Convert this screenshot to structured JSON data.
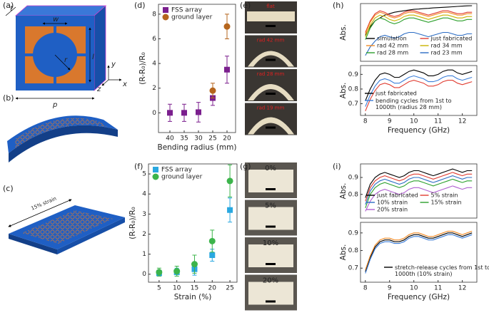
{
  "figure": {
    "panel_labels": [
      "(a)",
      "(b)",
      "(c)",
      "(d)",
      "(e)",
      "(f)",
      "(g)",
      "(h)",
      "(i)"
    ],
    "a_labels": {
      "t": "t",
      "w": "w",
      "r": "r",
      "l": "l",
      "p": "p",
      "y": "y",
      "z": "z",
      "x": "x"
    },
    "c_label": "15% strain",
    "e_labels": [
      "flat",
      "rad 42 mm",
      "rad 28 mm",
      "rad 19 mm"
    ],
    "g_labels": [
      "0%",
      "5%",
      "10%",
      "20%"
    ]
  },
  "chart_data": [
    {
      "type": "scatter",
      "xlabel": "Bending radius (mm)",
      "ylabel": "(R-R₀)/R₀",
      "xlim": [
        44,
        17
      ],
      "xticks": [
        40,
        35,
        30,
        25,
        20
      ],
      "ylim": [
        -1.6,
        8.8
      ],
      "yticks": [
        0,
        2,
        4,
        6,
        8
      ],
      "legend": "upper left",
      "series": [
        {
          "name": "FSS array",
          "color": "#7b1f8e",
          "marker": "square",
          "x": [
            40,
            35,
            30,
            25,
            20
          ],
          "values": [
            0,
            0,
            0.05,
            1.2,
            3.5
          ],
          "errors": [
            0.7,
            0.7,
            0.8,
            0.6,
            1.1
          ]
        },
        {
          "name": "ground layer",
          "color": "#b5651d",
          "marker": "circle",
          "x": [
            25,
            20
          ],
          "values": [
            1.8,
            7.0
          ],
          "errors": [
            0.6,
            1.0
          ]
        }
      ]
    },
    {
      "type": "scatter",
      "xlabel": "Strain (%)",
      "ylabel": "(R-R₀)/R₀",
      "xlim": [
        2,
        27
      ],
      "xticks": [
        5,
        10,
        15,
        20,
        25
      ],
      "ylim": [
        -0.4,
        5.5
      ],
      "yticks": [
        0,
        1,
        2,
        3,
        4,
        5
      ],
      "legend": "upper left",
      "series": [
        {
          "name": "FSS array",
          "color": "#29a8e0",
          "marker": "square",
          "x": [
            5,
            10,
            15,
            20,
            25
          ],
          "values": [
            0.05,
            0.1,
            0.25,
            0.95,
            3.2
          ],
          "errors": [
            0.15,
            0.2,
            0.3,
            0.3,
            0.6
          ]
        },
        {
          "name": "ground layer",
          "color": "#3cb44b",
          "marker": "circle",
          "x": [
            5,
            10,
            15,
            20,
            25
          ],
          "values": [
            0.1,
            0.15,
            0.5,
            1.65,
            4.65
          ],
          "errors": [
            0.2,
            0.25,
            0.45,
            0.55,
            0.8
          ]
        }
      ]
    },
    {
      "type": "line",
      "ylabel": "Abs.",
      "xlim": [
        7.8,
        12.6
      ],
      "ylim": [
        0.6,
        1.0
      ],
      "legend": "lower right",
      "legend_columns": 2,
      "x": [
        8,
        8.2,
        8.4,
        8.6,
        8.8,
        9,
        9.2,
        9.4,
        9.6,
        9.8,
        10,
        10.2,
        10.4,
        10.6,
        10.8,
        11,
        11.2,
        11.4,
        11.6,
        11.8,
        12,
        12.2,
        12.4
      ],
      "series": [
        {
          "name": "simulation",
          "color": "#000000",
          "values": [
            0.78,
            0.84,
            0.88,
            0.9,
            0.92,
            0.93,
            0.94,
            0.945,
            0.95,
            0.955,
            0.96,
            0.962,
            0.965,
            0.967,
            0.97,
            0.972,
            0.974,
            0.976,
            0.978,
            0.98,
            0.982,
            0.984,
            0.985
          ]
        },
        {
          "name": "just fabricated",
          "color": "#e03c31",
          "values": [
            0.8,
            0.88,
            0.93,
            0.95,
            0.94,
            0.92,
            0.91,
            0.92,
            0.94,
            0.95,
            0.95,
            0.94,
            0.93,
            0.92,
            0.93,
            0.94,
            0.95,
            0.95,
            0.94,
            0.93,
            0.93,
            0.94,
            0.94
          ]
        },
        {
          "name": "rad 42 mm",
          "color": "#f28c28",
          "values": [
            0.79,
            0.87,
            0.92,
            0.94,
            0.93,
            0.91,
            0.9,
            0.91,
            0.93,
            0.94,
            0.94,
            0.93,
            0.92,
            0.91,
            0.92,
            0.93,
            0.94,
            0.94,
            0.93,
            0.92,
            0.92,
            0.93,
            0.93
          ]
        },
        {
          "name": "rad 34 mm",
          "color": "#c9b400",
          "values": [
            0.77,
            0.85,
            0.9,
            0.92,
            0.91,
            0.89,
            0.88,
            0.89,
            0.91,
            0.92,
            0.92,
            0.91,
            0.9,
            0.89,
            0.9,
            0.91,
            0.92,
            0.92,
            0.91,
            0.9,
            0.9,
            0.91,
            0.91
          ]
        },
        {
          "name": "rad 28 mm",
          "color": "#2ca02c",
          "values": [
            0.75,
            0.83,
            0.88,
            0.9,
            0.89,
            0.87,
            0.86,
            0.87,
            0.89,
            0.9,
            0.9,
            0.89,
            0.88,
            0.87,
            0.88,
            0.89,
            0.9,
            0.9,
            0.89,
            0.88,
            0.88,
            0.89,
            0.89
          ]
        },
        {
          "name": "rad 23 mm",
          "color": "#2b6cc4",
          "values": [
            0.64,
            0.7,
            0.74,
            0.77,
            0.78,
            0.77,
            0.76,
            0.77,
            0.79,
            0.8,
            0.8,
            0.79,
            0.78,
            0.77,
            0.78,
            0.79,
            0.8,
            0.8,
            0.79,
            0.78,
            0.78,
            0.79,
            0.79
          ]
        }
      ]
    },
    {
      "type": "line",
      "xlabel": "Frequency (GHz)",
      "ylabel": "Abs.",
      "xlim": [
        7.8,
        12.6
      ],
      "xticks": [
        8,
        9,
        10,
        11,
        12
      ],
      "ylim": [
        0.62,
        0.96
      ],
      "yticks": [
        0.7,
        0.8,
        0.9
      ],
      "legend": "lower left",
      "legend_columns": 1,
      "x": [
        8,
        8.2,
        8.4,
        8.6,
        8.8,
        9,
        9.2,
        9.4,
        9.6,
        9.8,
        10,
        10.2,
        10.4,
        10.6,
        10.8,
        11,
        11.2,
        11.4,
        11.6,
        11.8,
        12,
        12.2,
        12.4
      ],
      "series": [
        {
          "name": "just fabricated",
          "color": "#000000",
          "values": [
            0.72,
            0.8,
            0.86,
            0.9,
            0.91,
            0.9,
            0.88,
            0.88,
            0.9,
            0.92,
            0.93,
            0.92,
            0.91,
            0.89,
            0.89,
            0.9,
            0.92,
            0.93,
            0.93,
            0.91,
            0.9,
            0.91,
            0.92
          ]
        },
        {
          "name": "bending cycles from 1st to\n1000th (radius 28 mm)",
          "color": "#3b7dd8",
          "values": [
            0.68,
            0.76,
            0.82,
            0.86,
            0.87,
            0.86,
            0.84,
            0.84,
            0.86,
            0.88,
            0.89,
            0.88,
            0.87,
            0.85,
            0.85,
            0.86,
            0.88,
            0.89,
            0.89,
            0.87,
            0.86,
            0.87,
            0.88
          ]
        },
        {
          "color": "#e03c31",
          "values": [
            0.65,
            0.73,
            0.79,
            0.83,
            0.84,
            0.83,
            0.81,
            0.81,
            0.83,
            0.85,
            0.86,
            0.85,
            0.84,
            0.82,
            0.82,
            0.83,
            0.85,
            0.86,
            0.86,
            0.84,
            0.83,
            0.84,
            0.85
          ]
        }
      ]
    },
    {
      "type": "line",
      "ylabel": "Abs.",
      "xlim": [
        7.8,
        12.6
      ],
      "ylim": [
        0.66,
        0.98
      ],
      "yticks": [
        0.8,
        0.9
      ],
      "legend": "lower right",
      "legend_columns": 2,
      "x": [
        8,
        8.2,
        8.4,
        8.6,
        8.8,
        9,
        9.2,
        9.4,
        9.6,
        9.8,
        10,
        10.2,
        10.4,
        10.6,
        10.8,
        11,
        11.2,
        11.4,
        11.6,
        11.8,
        12,
        12.2,
        12.4
      ],
      "series": [
        {
          "name": "just fabricated",
          "color": "#000000",
          "values": [
            0.78,
            0.86,
            0.9,
            0.92,
            0.93,
            0.92,
            0.91,
            0.9,
            0.91,
            0.93,
            0.94,
            0.94,
            0.93,
            0.92,
            0.91,
            0.92,
            0.93,
            0.94,
            0.95,
            0.94,
            0.93,
            0.94,
            0.94
          ]
        },
        {
          "name": "5% strain",
          "color": "#e03c31",
          "values": [
            0.76,
            0.84,
            0.88,
            0.9,
            0.91,
            0.9,
            0.89,
            0.88,
            0.89,
            0.91,
            0.92,
            0.92,
            0.91,
            0.9,
            0.89,
            0.9,
            0.91,
            0.92,
            0.93,
            0.92,
            0.91,
            0.92,
            0.92
          ]
        },
        {
          "name": "10% strain",
          "color": "#2b6cc4",
          "values": [
            0.74,
            0.82,
            0.86,
            0.88,
            0.89,
            0.88,
            0.87,
            0.86,
            0.87,
            0.89,
            0.9,
            0.9,
            0.89,
            0.88,
            0.87,
            0.88,
            0.89,
            0.9,
            0.91,
            0.9,
            0.89,
            0.9,
            0.9
          ]
        },
        {
          "name": "15% strain",
          "color": "#2ca02c",
          "values": [
            0.72,
            0.8,
            0.84,
            0.86,
            0.87,
            0.86,
            0.85,
            0.84,
            0.85,
            0.87,
            0.88,
            0.88,
            0.87,
            0.86,
            0.85,
            0.86,
            0.87,
            0.88,
            0.89,
            0.88,
            0.87,
            0.88,
            0.88
          ]
        },
        {
          "name": "20% strain",
          "color": "#b05fd0",
          "values": [
            0.7,
            0.76,
            0.8,
            0.82,
            0.83,
            0.82,
            0.81,
            0.8,
            0.81,
            0.83,
            0.84,
            0.84,
            0.83,
            0.82,
            0.81,
            0.82,
            0.83,
            0.84,
            0.85,
            0.84,
            0.83,
            0.84,
            0.84
          ]
        }
      ]
    },
    {
      "type": "line",
      "xlabel": "Frequency (GHz)",
      "ylabel": "Abs.",
      "xlim": [
        7.8,
        12.6
      ],
      "xticks": [
        8,
        9,
        10,
        11,
        12
      ],
      "ylim": [
        0.62,
        0.96
      ],
      "yticks": [
        0.7,
        0.8,
        0.9
      ],
      "legend": "lower right",
      "legend_columns": 1,
      "x": [
        8,
        8.2,
        8.4,
        8.6,
        8.8,
        9,
        9.2,
        9.4,
        9.6,
        9.8,
        10,
        10.2,
        10.4,
        10.6,
        10.8,
        11,
        11.2,
        11.4,
        11.6,
        11.8,
        12,
        12.2,
        12.4
      ],
      "series": [
        {
          "name": "stretch-release cycles from 1st to\n1000th (10% strain)",
          "color": "#000000",
          "values": [
            0.68,
            0.76,
            0.82,
            0.85,
            0.86,
            0.86,
            0.85,
            0.85,
            0.86,
            0.88,
            0.89,
            0.89,
            0.88,
            0.87,
            0.87,
            0.88,
            0.89,
            0.9,
            0.9,
            0.89,
            0.88,
            0.89,
            0.9
          ]
        },
        {
          "color": "#f28c28",
          "values": [
            0.69,
            0.77,
            0.83,
            0.86,
            0.87,
            0.87,
            0.86,
            0.86,
            0.87,
            0.89,
            0.9,
            0.9,
            0.89,
            0.88,
            0.88,
            0.89,
            0.9,
            0.91,
            0.91,
            0.9,
            0.89,
            0.9,
            0.91
          ]
        },
        {
          "color": "#3b7dd8",
          "values": [
            0.67,
            0.75,
            0.81,
            0.84,
            0.85,
            0.85,
            0.84,
            0.84,
            0.85,
            0.87,
            0.88,
            0.88,
            0.87,
            0.86,
            0.86,
            0.87,
            0.88,
            0.89,
            0.89,
            0.88,
            0.87,
            0.88,
            0.89
          ]
        }
      ]
    }
  ]
}
